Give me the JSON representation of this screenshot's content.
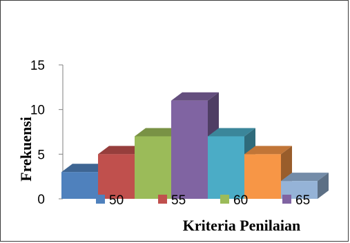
{
  "chart_data": {
    "type": "bar",
    "style": "3d-column",
    "title": "",
    "xlabel": "Kriteria Penilaian",
    "ylabel": "Frekuensi",
    "ylim": [
      0,
      15
    ],
    "yticks": [
      0,
      5,
      10,
      15
    ],
    "grid": false,
    "legend_position": "bottom",
    "series": [
      {
        "name": "50",
        "value": 3,
        "color": "#4F81BD"
      },
      {
        "name": "55",
        "value": 5,
        "color": "#C0504D"
      },
      {
        "name": "60",
        "value": 7,
        "color": "#9BBB59"
      },
      {
        "name": "65",
        "value": 11,
        "color": "#8064A2"
      },
      {
        "name": "",
        "value": 7,
        "color": "#4BACC6"
      },
      {
        "name": "",
        "value": 5,
        "color": "#F79646"
      },
      {
        "name": "",
        "value": 2,
        "color": "#95B3D7"
      }
    ],
    "legend": [
      {
        "label": "50",
        "color": "#4F81BD"
      },
      {
        "label": "55",
        "color": "#C0504D"
      },
      {
        "label": "60",
        "color": "#9BBB59"
      },
      {
        "label": "65",
        "color": "#8064A2"
      }
    ]
  }
}
